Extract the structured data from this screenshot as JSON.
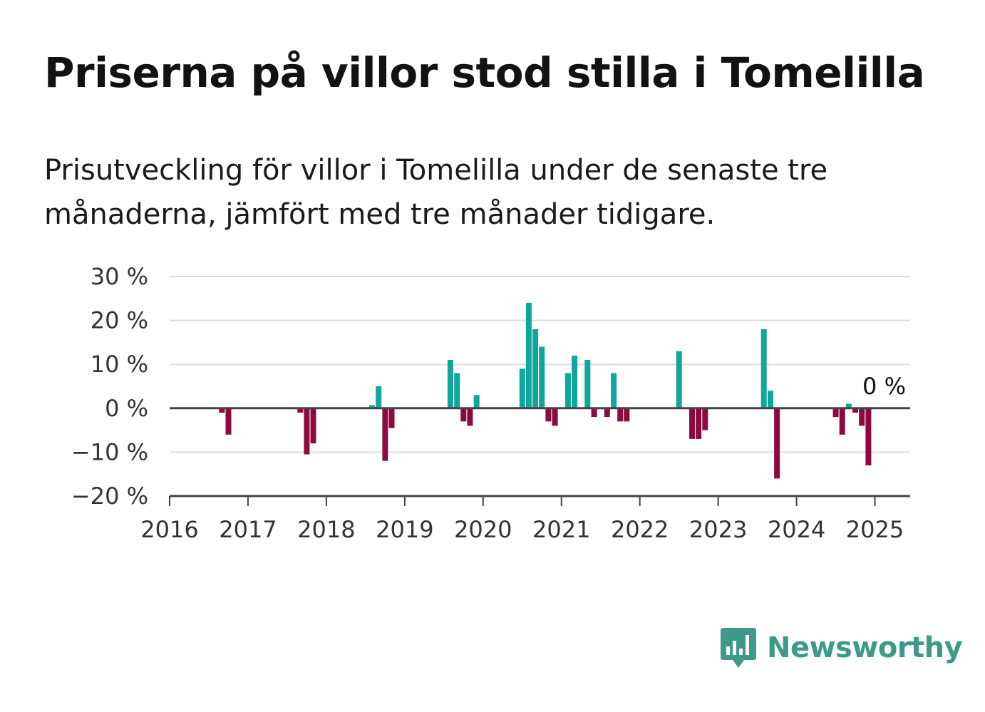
{
  "title": "Priserna på villor stod stilla i Tomelilla",
  "subtitle": "Prisutveckling för villor i Tomelilla under de senaste tre månaderna, jämfört med tre månader tidigare.",
  "brand": {
    "name": "Newsworthy",
    "color": "#3d9a8b"
  },
  "colors": {
    "positive": "#0fa69b",
    "negative": "#8c0a3f",
    "grid": "#dddddd",
    "axis": "#444444"
  },
  "chart_data": {
    "type": "bar",
    "x_unit": "year",
    "xlim": [
      2016,
      2025.45
    ],
    "ylim": [
      -20,
      30
    ],
    "y_ticks": [
      30,
      20,
      10,
      0,
      -10,
      -20
    ],
    "y_tick_labels": [
      "30 %",
      "20 %",
      "10 %",
      "0 %",
      "−10 %",
      "−20 %"
    ],
    "x_ticks": [
      2016,
      2017,
      2018,
      2019,
      2020,
      2021,
      2022,
      2023,
      2024,
      2025
    ],
    "x_tick_labels": [
      "2016",
      "2017",
      "2018",
      "2019",
      "2020",
      "2021",
      "2022",
      "2023",
      "2024",
      "2025"
    ],
    "grid": true,
    "last_label": "0 %",
    "points": [
      {
        "x": 2016.667,
        "y": -1
      },
      {
        "x": 2016.75,
        "y": -6
      },
      {
        "x": 2017.667,
        "y": -1
      },
      {
        "x": 2017.75,
        "y": -10.5
      },
      {
        "x": 2017.833,
        "y": -8
      },
      {
        "x": 2018.583,
        "y": 0.7
      },
      {
        "x": 2018.667,
        "y": 5
      },
      {
        "x": 2018.75,
        "y": -12
      },
      {
        "x": 2018.833,
        "y": -4.5
      },
      {
        "x": 2019.583,
        "y": 11
      },
      {
        "x": 2019.667,
        "y": 8
      },
      {
        "x": 2019.75,
        "y": -3
      },
      {
        "x": 2019.833,
        "y": -4
      },
      {
        "x": 2019.917,
        "y": 3
      },
      {
        "x": 2020.5,
        "y": 9
      },
      {
        "x": 2020.583,
        "y": 24
      },
      {
        "x": 2020.667,
        "y": 18
      },
      {
        "x": 2020.75,
        "y": 14
      },
      {
        "x": 2020.833,
        "y": -3
      },
      {
        "x": 2020.917,
        "y": -4
      },
      {
        "x": 2021.083,
        "y": 8
      },
      {
        "x": 2021.167,
        "y": 12
      },
      {
        "x": 2021.333,
        "y": 11
      },
      {
        "x": 2021.417,
        "y": -2
      },
      {
        "x": 2021.583,
        "y": -2
      },
      {
        "x": 2021.667,
        "y": 8
      },
      {
        "x": 2021.75,
        "y": -3
      },
      {
        "x": 2021.833,
        "y": -3
      },
      {
        "x": 2022.5,
        "y": 13
      },
      {
        "x": 2022.667,
        "y": -7
      },
      {
        "x": 2022.75,
        "y": -7
      },
      {
        "x": 2022.833,
        "y": -5
      },
      {
        "x": 2023.583,
        "y": 18
      },
      {
        "x": 2023.667,
        "y": 4
      },
      {
        "x": 2023.75,
        "y": -16
      },
      {
        "x": 2024.5,
        "y": -2
      },
      {
        "x": 2024.583,
        "y": -6
      },
      {
        "x": 2024.667,
        "y": 1
      },
      {
        "x": 2024.75,
        "y": -1
      },
      {
        "x": 2024.833,
        "y": -4
      },
      {
        "x": 2024.917,
        "y": -13
      },
      {
        "x": 2025.0,
        "y": 0
      }
    ]
  }
}
